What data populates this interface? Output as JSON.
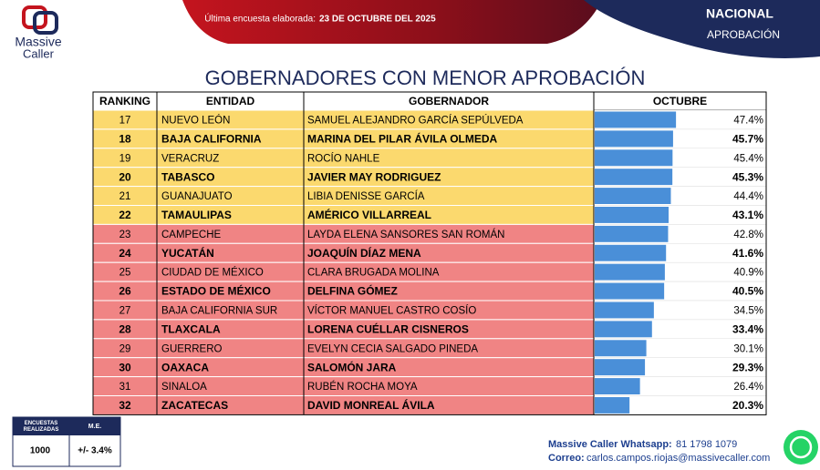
{
  "header": {
    "logo_top": "Massive",
    "logo_bottom": "Caller",
    "survey_label": "Última encuesta elaborada:",
    "survey_date": "23 DE OCTUBRE DEL 2025",
    "scope": "NACIONAL",
    "metric": "APROBACIÓN"
  },
  "table": {
    "title": "GOBERNADORES CON MENOR APROBACIÓN",
    "columns": [
      "RANKING",
      "ENTIDAD",
      "GOBERNADOR",
      "OCTUBRE"
    ],
    "bar_color": "#4a8fd8",
    "xlim": [
      0,
      100
    ],
    "rows": [
      {
        "rank": 17,
        "entity": "NUEVO LEÓN",
        "governor": "SAMUEL ALEJANDRO GARCÍA SEPÚLVEDA",
        "value": 47.4,
        "value_label": "47.4%",
        "bold": false,
        "color": "#fbd96e"
      },
      {
        "rank": 18,
        "entity": "BAJA CALIFORNIA",
        "governor": "MARINA DEL PILAR ÁVILA OLMEDA",
        "value": 45.7,
        "value_label": "45.7%",
        "bold": true,
        "color": "#fbd96e"
      },
      {
        "rank": 19,
        "entity": "VERACRUZ",
        "governor": "ROCÍO NAHLE",
        "value": 45.4,
        "value_label": "45.4%",
        "bold": false,
        "color": "#fbd96e"
      },
      {
        "rank": 20,
        "entity": "TABASCO",
        "governor": "JAVIER MAY RODRIGUEZ",
        "value": 45.3,
        "value_label": "45.3%",
        "bold": true,
        "color": "#fbd96e"
      },
      {
        "rank": 21,
        "entity": "GUANAJUATO",
        "governor": "LIBIA DENISSE GARCÍA",
        "value": 44.4,
        "value_label": "44.4%",
        "bold": false,
        "color": "#fbd96e"
      },
      {
        "rank": 22,
        "entity": "TAMAULIPAS",
        "governor": "AMÉRICO VILLARREAL",
        "value": 43.1,
        "value_label": "43.1%",
        "bold": true,
        "color": "#fbd96e"
      },
      {
        "rank": 23,
        "entity": "CAMPECHE",
        "governor": "LAYDA ELENA SANSORES SAN ROMÁN",
        "value": 42.8,
        "value_label": "42.8%",
        "bold": false,
        "color": "#f08484"
      },
      {
        "rank": 24,
        "entity": "YUCATÁN",
        "governor": "JOAQUÍN DÍAZ MENA",
        "value": 41.6,
        "value_label": "41.6%",
        "bold": true,
        "color": "#f08484"
      },
      {
        "rank": 25,
        "entity": "CIUDAD DE MÉXICO",
        "governor": "CLARA BRUGADA MOLINA",
        "value": 40.9,
        "value_label": "40.9%",
        "bold": false,
        "color": "#f08484"
      },
      {
        "rank": 26,
        "entity": "ESTADO DE MÉXICO",
        "governor": "DELFINA GÓMEZ",
        "value": 40.5,
        "value_label": "40.5%",
        "bold": true,
        "color": "#f08484"
      },
      {
        "rank": 27,
        "entity": "BAJA CALIFORNIA SUR",
        "governor": "VÍCTOR MANUEL CASTRO COSÍO",
        "value": 34.5,
        "value_label": "34.5%",
        "bold": false,
        "color": "#f08484"
      },
      {
        "rank": 28,
        "entity": "TLAXCALA",
        "governor": "LORENA CUÉLLAR CISNEROS",
        "value": 33.4,
        "value_label": "33.4%",
        "bold": true,
        "color": "#f08484"
      },
      {
        "rank": 29,
        "entity": "GUERRERO",
        "governor": "EVELYN CECIA SALGADO PINEDA",
        "value": 30.1,
        "value_label": "30.1%",
        "bold": false,
        "color": "#f08484"
      },
      {
        "rank": 30,
        "entity": "OAXACA",
        "governor": "SALOMÓN JARA",
        "value": 29.3,
        "value_label": "29.3%",
        "bold": true,
        "color": "#f08484"
      },
      {
        "rank": 31,
        "entity": "SINALOA",
        "governor": "RUBÉN ROCHA MOYA",
        "value": 26.4,
        "value_label": "26.4%",
        "bold": false,
        "color": "#f08484"
      },
      {
        "rank": 32,
        "entity": "ZACATECAS",
        "governor": "DAVID MONREAL ÁVILA",
        "value": 20.3,
        "value_label": "20.3%",
        "bold": true,
        "color": "#f08484"
      }
    ]
  },
  "footer": {
    "surveys_label": "ENCUESTAS REALIZADAS",
    "me_label": "M.E.",
    "surveys": 1000,
    "me": "+/- 3.4%",
    "whatsapp_label": "Massive Caller Whatsapp:",
    "whatsapp": "81 1798 1079",
    "email_label": "Correo:",
    "email": "carlos.campos.riojas@massivecaller.com"
  }
}
